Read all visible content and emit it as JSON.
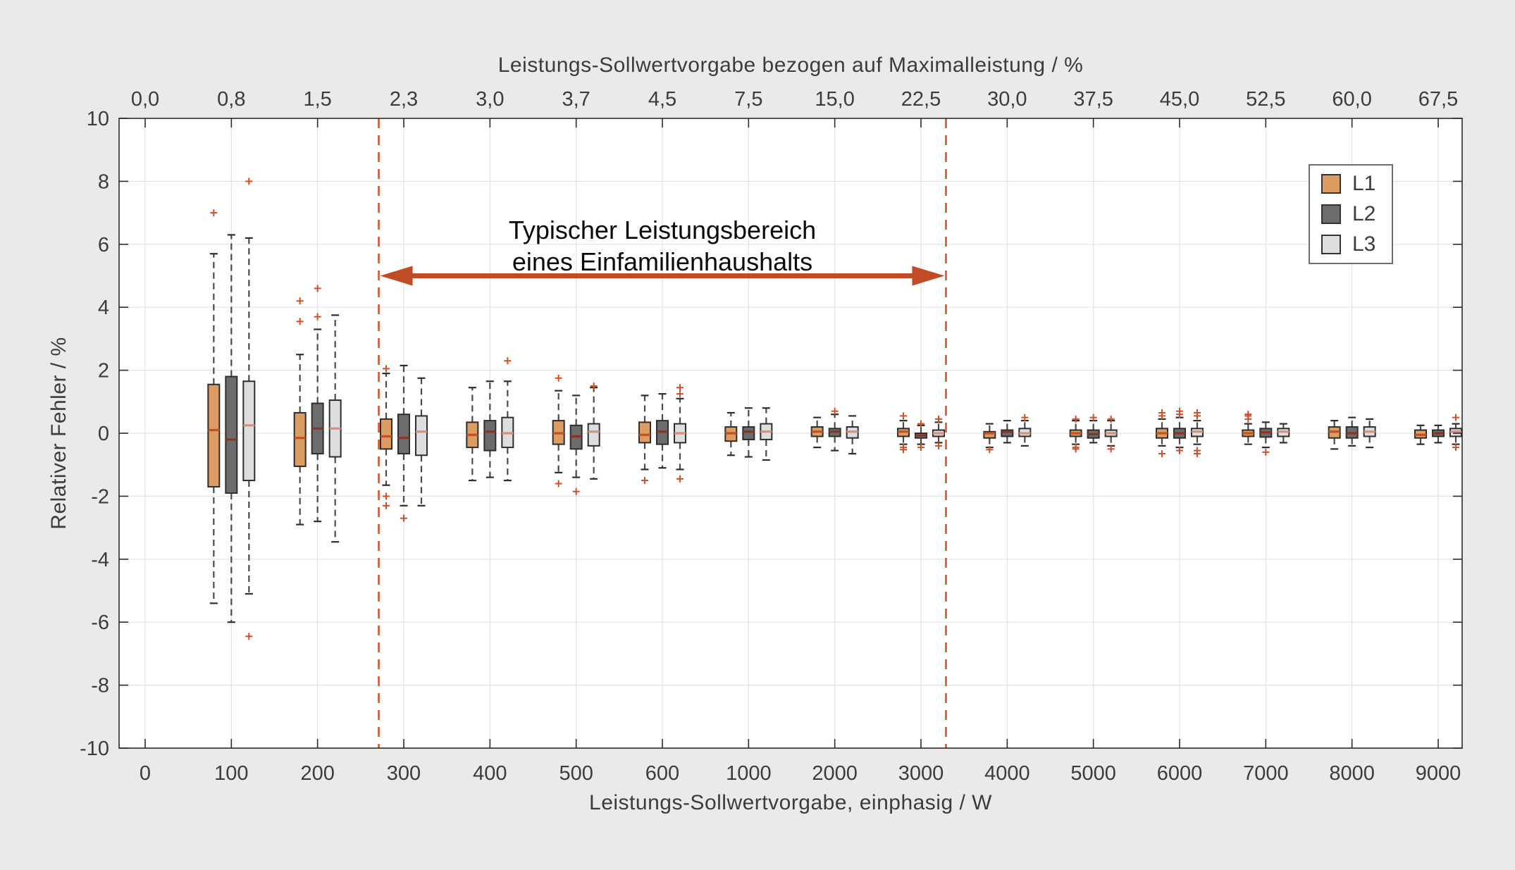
{
  "chart_data": {
    "type": "boxplot",
    "xlabel_bottom": "Leistungs-Sollwertvorgabe, einphasig / W",
    "xlabel_top": "Leistungs-Sollwertvorgabe bezogen auf Maximalleistung / %",
    "ylabel": "Relativer Fehler / %",
    "ylim": [
      -10,
      10
    ],
    "grid": true,
    "legend_position": "northeast",
    "ytick_values": [
      10,
      8,
      6,
      4,
      2,
      0,
      -2,
      -4,
      -6,
      -8,
      -10
    ],
    "ytick_labels": [
      "10",
      "8",
      "6",
      "4",
      "2",
      "0",
      "-2",
      "-4",
      "-6",
      "-8",
      "-10"
    ],
    "xtick_labels_bottom": [
      "0",
      "100",
      "200",
      "300",
      "400",
      "500",
      "600",
      "1000",
      "2000",
      "3000",
      "4000",
      "5000",
      "6000",
      "7000",
      "8000",
      "9000"
    ],
    "xtick_labels_top": [
      "0,0",
      "0,8",
      "1,5",
      "2,3",
      "3,0",
      "3,7",
      "4,5",
      "7,5",
      "15,0",
      "22,5",
      "30,0",
      "37,5",
      "45,0",
      "52,5",
      "60,0",
      "67,5"
    ],
    "series": [
      {
        "name": "L1",
        "fill": "#dc9c62",
        "median": "#c05324"
      },
      {
        "name": "L2",
        "fill": "#6d6c6c",
        "median": "#8c3326"
      },
      {
        "name": "L3",
        "fill": "#dedede",
        "median": "#d98f7c"
      }
    ],
    "annotation": {
      "line1": "Typischer Leistungsbereich",
      "line2": "eines Einfamilienhaushalts"
    },
    "typical_range": {
      "start_W": 270,
      "end_W": 3300,
      "start_index": 2.71,
      "end_index": 9.29,
      "arrow_y": 5.0
    },
    "groups": [
      {
        "W": "100",
        "boxes": [
          {
            "low": -5.4,
            "q1": -1.7,
            "median": 0.1,
            "q3": 1.55,
            "high": 5.7,
            "outliers": [
              7.0
            ]
          },
          {
            "low": -6.0,
            "q1": -1.9,
            "median": -0.2,
            "q3": 1.8,
            "high": 6.3,
            "outliers": []
          },
          {
            "low": -5.1,
            "q1": -1.5,
            "median": 0.25,
            "q3": 1.65,
            "high": 6.2,
            "outliers": [
              8.0,
              -6.45
            ]
          }
        ]
      },
      {
        "W": "200",
        "boxes": [
          {
            "low": -2.9,
            "q1": -1.05,
            "median": -0.15,
            "q3": 0.65,
            "high": 2.5,
            "outliers": [
              3.55,
              4.2
            ]
          },
          {
            "low": -2.8,
            "q1": -0.65,
            "median": 0.15,
            "q3": 0.95,
            "high": 3.3,
            "outliers": [
              3.7,
              4.6
            ]
          },
          {
            "low": -3.45,
            "q1": -0.75,
            "median": 0.15,
            "q3": 1.05,
            "high": 3.75,
            "outliers": []
          }
        ]
      },
      {
        "W": "300",
        "boxes": [
          {
            "low": -1.65,
            "q1": -0.5,
            "median": -0.1,
            "q3": 0.45,
            "high": 1.9,
            "outliers": [
              2.05,
              -2.0,
              -2.3
            ]
          },
          {
            "low": -2.3,
            "q1": -0.65,
            "median": -0.15,
            "q3": 0.6,
            "high": 2.15,
            "outliers": [
              -2.7
            ]
          },
          {
            "low": -2.3,
            "q1": -0.7,
            "median": 0.05,
            "q3": 0.55,
            "high": 1.75,
            "outliers": []
          }
        ]
      },
      {
        "W": "400",
        "boxes": [
          {
            "low": -1.5,
            "q1": -0.45,
            "median": -0.05,
            "q3": 0.35,
            "high": 1.45,
            "outliers": []
          },
          {
            "low": -1.4,
            "q1": -0.55,
            "median": 0.05,
            "q3": 0.4,
            "high": 1.65,
            "outliers": []
          },
          {
            "low": -1.5,
            "q1": -0.45,
            "median": 0.0,
            "q3": 0.5,
            "high": 1.65,
            "outliers": [
              2.3
            ]
          }
        ]
      },
      {
        "W": "500",
        "boxes": [
          {
            "low": -1.25,
            "q1": -0.35,
            "median": 0.0,
            "q3": 0.4,
            "high": 1.35,
            "outliers": [
              1.75,
              -1.6
            ]
          },
          {
            "low": -1.4,
            "q1": -0.5,
            "median": -0.1,
            "q3": 0.25,
            "high": 1.2,
            "outliers": [
              -1.85
            ]
          },
          {
            "low": -1.45,
            "q1": -0.4,
            "median": 0.05,
            "q3": 0.3,
            "high": 1.45,
            "outliers": [
              1.5
            ]
          }
        ]
      },
      {
        "W": "600",
        "boxes": [
          {
            "low": -1.15,
            "q1": -0.3,
            "median": -0.05,
            "q3": 0.35,
            "high": 1.2,
            "outliers": [
              -1.5
            ]
          },
          {
            "low": -1.1,
            "q1": -0.35,
            "median": 0.05,
            "q3": 0.4,
            "high": 1.25,
            "outliers": []
          },
          {
            "low": -1.15,
            "q1": -0.3,
            "median": 0.0,
            "q3": 0.3,
            "high": 1.1,
            "outliers": [
              1.45,
              1.25,
              -1.45
            ]
          }
        ]
      },
      {
        "W": "1000",
        "boxes": [
          {
            "low": -0.7,
            "q1": -0.25,
            "median": 0.0,
            "q3": 0.2,
            "high": 0.65,
            "outliers": []
          },
          {
            "low": -0.75,
            "q1": -0.2,
            "median": 0.05,
            "q3": 0.2,
            "high": 0.8,
            "outliers": []
          },
          {
            "low": -0.85,
            "q1": -0.2,
            "median": 0.05,
            "q3": 0.3,
            "high": 0.8,
            "outliers": []
          }
        ]
      },
      {
        "W": "2000",
        "boxes": [
          {
            "low": -0.45,
            "q1": -0.1,
            "median": 0.05,
            "q3": 0.2,
            "high": 0.5,
            "outliers": []
          },
          {
            "low": -0.55,
            "q1": -0.1,
            "median": 0.05,
            "q3": 0.15,
            "high": 0.6,
            "outliers": [
              0.7
            ]
          },
          {
            "low": -0.65,
            "q1": -0.15,
            "median": 0.05,
            "q3": 0.2,
            "high": 0.55,
            "outliers": []
          }
        ]
      },
      {
        "W": "3000",
        "boxes": [
          {
            "low": -0.35,
            "q1": -0.1,
            "median": 0.05,
            "q3": 0.15,
            "high": 0.4,
            "outliers": [
              0.55,
              -0.45,
              -0.52
            ]
          },
          {
            "low": -0.35,
            "q1": -0.15,
            "median": -0.07,
            "q3": 0.0,
            "high": 0.25,
            "outliers": [
              0.3,
              -0.45
            ]
          },
          {
            "low": -0.3,
            "q1": -0.1,
            "median": 0.0,
            "q3": 0.1,
            "high": 0.35,
            "outliers": [
              0.45,
              -0.4
            ]
          }
        ]
      },
      {
        "W": "4000",
        "boxes": [
          {
            "low": -0.45,
            "q1": -0.15,
            "median": 0.0,
            "q3": 0.05,
            "high": 0.3,
            "outliers": [
              -0.52
            ]
          },
          {
            "low": -0.3,
            "q1": -0.1,
            "median": 0.05,
            "q3": 0.1,
            "high": 0.4,
            "outliers": []
          },
          {
            "low": -0.4,
            "q1": -0.1,
            "median": 0.0,
            "q3": 0.15,
            "high": 0.4,
            "outliers": [
              0.5
            ]
          }
        ]
      },
      {
        "W": "5000",
        "boxes": [
          {
            "low": -0.35,
            "q1": -0.1,
            "median": 0.0,
            "q3": 0.1,
            "high": 0.4,
            "outliers": [
              0.45,
              -0.45,
              -0.5
            ]
          },
          {
            "low": -0.3,
            "q1": -0.15,
            "median": -0.03,
            "q3": 0.1,
            "high": 0.4,
            "outliers": [
              0.5
            ]
          },
          {
            "low": -0.4,
            "q1": -0.1,
            "median": 0.0,
            "q3": 0.1,
            "high": 0.4,
            "outliers": [
              0.45,
              -0.5
            ]
          }
        ]
      },
      {
        "W": "6000",
        "boxes": [
          {
            "low": -0.4,
            "q1": -0.15,
            "median": 0.0,
            "q3": 0.15,
            "high": 0.45,
            "outliers": [
              0.55,
              0.65,
              -0.65
            ]
          },
          {
            "low": -0.45,
            "q1": -0.15,
            "median": 0.0,
            "q3": 0.15,
            "high": 0.5,
            "outliers": [
              0.6,
              0.7,
              -0.55
            ]
          },
          {
            "low": -0.35,
            "q1": -0.1,
            "median": 0.05,
            "q3": 0.15,
            "high": 0.4,
            "outliers": [
              0.55,
              0.65,
              -0.55,
              -0.65
            ]
          }
        ]
      },
      {
        "W": "7000",
        "boxes": [
          {
            "low": -0.35,
            "q1": -0.1,
            "median": 0.0,
            "q3": 0.1,
            "high": 0.3,
            "outliers": [
              0.45,
              0.55,
              0.6
            ]
          },
          {
            "low": -0.45,
            "q1": -0.12,
            "median": 0.03,
            "q3": 0.15,
            "high": 0.35,
            "outliers": [
              -0.6
            ]
          },
          {
            "low": -0.3,
            "q1": -0.1,
            "median": 0.05,
            "q3": 0.15,
            "high": 0.3,
            "outliers": []
          }
        ]
      },
      {
        "W": "8000",
        "boxes": [
          {
            "low": -0.5,
            "q1": -0.15,
            "median": 0.05,
            "q3": 0.2,
            "high": 0.4,
            "outliers": []
          },
          {
            "low": -0.4,
            "q1": -0.15,
            "median": 0.0,
            "q3": 0.2,
            "high": 0.5,
            "outliers": []
          },
          {
            "low": -0.45,
            "q1": -0.1,
            "median": 0.05,
            "q3": 0.2,
            "high": 0.45,
            "outliers": []
          }
        ]
      },
      {
        "W": "9000",
        "boxes": [
          {
            "low": -0.35,
            "q1": -0.15,
            "median": -0.05,
            "q3": 0.1,
            "high": 0.25,
            "outliers": []
          },
          {
            "low": -0.3,
            "q1": -0.1,
            "median": 0.0,
            "q3": 0.1,
            "high": 0.25,
            "outliers": []
          },
          {
            "low": -0.35,
            "q1": -0.1,
            "median": 0.05,
            "q3": 0.15,
            "high": 0.3,
            "outliers": [
              0.5,
              -0.45
            ]
          }
        ]
      }
    ],
    "colors": {
      "background": "#ebeae8",
      "plot_bg": "#ffffff",
      "grid": "#e3e3e3",
      "axis": "#2b2b2b",
      "text": "#3c3c3c",
      "whisker": "#4a4a4a",
      "box_edge": "#2e2e2e",
      "outlier": "#d14e27",
      "range_line": "#d4572e",
      "arrow": "#c04b24",
      "legend_border": "#6e6e6e"
    }
  }
}
